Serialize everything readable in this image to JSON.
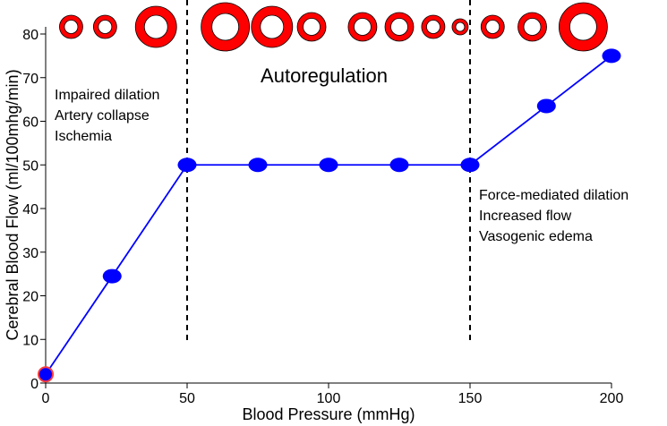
{
  "chart_data": {
    "type": "line",
    "xlabel": "Blood Pressure (mmHg)",
    "ylabel": "Cerebral Blood Flow (ml/100mhg/min)",
    "xlim": [
      0,
      200
    ],
    "ylim": [
      0,
      85
    ],
    "x_ticks": [
      "0",
      "50",
      "100",
      "150",
      "200"
    ],
    "y_ticks": [
      "0",
      "10",
      "20",
      "30",
      "40",
      "50",
      "60",
      "70",
      "80"
    ],
    "grid": false,
    "series": [
      {
        "color": "#0000ff",
        "points": [
          {
            "x": 0,
            "y": 2
          },
          {
            "x": 23.5,
            "y": 24.5
          },
          {
            "x": 50,
            "y": 50
          },
          {
            "x": 75,
            "y": 50
          },
          {
            "x": 100,
            "y": 50
          },
          {
            "x": 125,
            "y": 50
          },
          {
            "x": 150,
            "y": 50
          },
          {
            "x": 177,
            "y": 63.5
          },
          {
            "x": 200,
            "y": 75
          }
        ]
      }
    ],
    "reference_lines": [
      {
        "x": 50,
        "style": "dashed"
      },
      {
        "x": 150,
        "style": "dashed"
      }
    ],
    "annotations": {
      "autoregulation": "Autoregulation",
      "left_lines": [
        "Impaired dilation",
        "Artery collapse",
        "Ischemia"
      ],
      "right_lines": [
        "Force-mediated dilation",
        "Increased flow",
        "Vasogenic edema"
      ]
    },
    "vessel_icons": {
      "ring_color": "#ff0000",
      "items": [
        {
          "x": 9,
          "size": "small"
        },
        {
          "x": 21,
          "size": "small"
        },
        {
          "x": 39,
          "size": "large"
        },
        {
          "x": 63.5,
          "size": "xlarge"
        },
        {
          "x": 80,
          "size": "large"
        },
        {
          "x": 94,
          "size": "medium"
        },
        {
          "x": 112,
          "size": "medium"
        },
        {
          "x": 125,
          "size": "medium"
        },
        {
          "x": 137,
          "size": "small"
        },
        {
          "x": 146.5,
          "size": "tiny"
        },
        {
          "x": 158,
          "size": "small"
        },
        {
          "x": 172,
          "size": "medium"
        },
        {
          "x": 190,
          "size": "xlarge"
        }
      ]
    }
  }
}
